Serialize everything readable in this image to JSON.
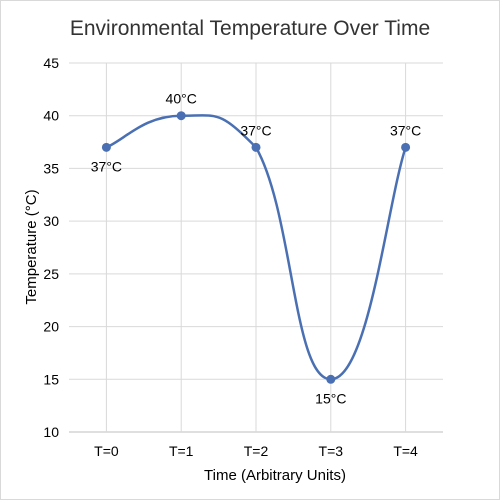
{
  "chart_data": {
    "type": "line",
    "title": "Environmental Temperature Over Time",
    "xlabel": "Time (Arbitrary Units)",
    "ylabel": "Temperature (°C)",
    "categories": [
      "T=0",
      "T=1",
      "T=2",
      "T=3",
      "T=4"
    ],
    "series": [
      {
        "values": [
          37,
          40,
          37,
          15,
          37
        ],
        "data_labels": [
          "37°C",
          "40°C",
          "37°C",
          "15°C",
          "37°C"
        ],
        "color": "#4a70b3"
      }
    ],
    "ylim": [
      10,
      45
    ],
    "yticks": [
      10,
      15,
      20,
      25,
      30,
      35,
      40,
      45
    ],
    "grid": "both",
    "legend": "none"
  }
}
